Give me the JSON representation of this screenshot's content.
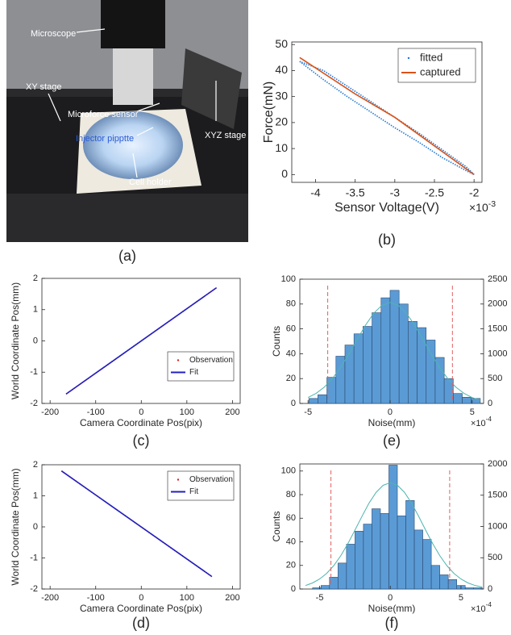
{
  "photo": {
    "labels": [
      "Microscope",
      "XY stage",
      "Microforce sensor",
      "Injector pipptte",
      "Cell holder",
      "XYZ stage"
    ],
    "caption": "(a)"
  },
  "chart_data": [
    {
      "type": "line",
      "caption": "(b)",
      "xlabel": "Sensor Voltage(V)",
      "ylabel": "Force(mN)",
      "x_exponent_base": "×10",
      "x_exponent_power": "-3",
      "xlim": [
        -4.3,
        -1.9
      ],
      "xticks": [
        -4,
        -3.5,
        -3,
        -2.5,
        -2
      ],
      "ylim": [
        -3,
        51
      ],
      "yticks": [
        0,
        10,
        20,
        30,
        40,
        50
      ],
      "legend": "upper right",
      "series": [
        {
          "name": "fitted",
          "color": "#1f77d4",
          "line_style": "dotted",
          "x": [
            -4.2,
            -3.9,
            -3.6,
            -3.3,
            -3.0,
            -2.7,
            -2.4,
            -2.1,
            -2.0,
            -2.1,
            -2.4,
            -2.7,
            -3.0,
            -3.3,
            -3.6,
            -3.9,
            -4.2
          ],
          "y": [
            43.5,
            36.5,
            30,
            24,
            18,
            12.5,
            6.5,
            1.5,
            0,
            3,
            9.5,
            16,
            22,
            28,
            34,
            40,
            43.5
          ]
        },
        {
          "name": "captured",
          "color": "#d95319",
          "line_style": "solid",
          "x": [
            -4.2,
            -3.5,
            -3.0,
            -2.5,
            -2.0
          ],
          "y": [
            45,
            31,
            22,
            11,
            0
          ]
        }
      ]
    },
    {
      "type": "line",
      "caption": "(c)",
      "xlabel": "Camera Coordinate Pos(pix)",
      "ylabel": "World Coordinate Pos(mm)",
      "xlim": [
        -218,
        217
      ],
      "xticks": [
        -200,
        -100,
        0,
        100,
        200
      ],
      "ylim": [
        -2,
        2
      ],
      "yticks": [
        -2,
        -1,
        0,
        1,
        2
      ],
      "legend": "center right",
      "series": [
        {
          "name": "Observation",
          "color": "#d62728",
          "line_style": "dotted",
          "x": [
            -165,
            165
          ],
          "y": [
            -1.7,
            1.7
          ]
        },
        {
          "name": "Fit",
          "color": "#2020c0",
          "line_style": "solid",
          "x": [
            -165,
            165
          ],
          "y": [
            -1.7,
            1.7
          ]
        }
      ]
    },
    {
      "type": "line",
      "caption": "(d)",
      "xlabel": "Camera Coordinate Pos(pix)",
      "ylabel": "World Coordinate Pos(mm)",
      "xlim": [
        -218,
        217
      ],
      "xticks": [
        -200,
        -100,
        0,
        100,
        200
      ],
      "ylim": [
        -2,
        2
      ],
      "yticks": [
        -2,
        -1,
        0,
        1,
        2
      ],
      "legend": "upper right",
      "series": [
        {
          "name": "Observation",
          "color": "#d62728",
          "line_style": "dotted",
          "x": [
            -175,
            155
          ],
          "y": [
            1.8,
            -1.6
          ]
        },
        {
          "name": "Fit",
          "color": "#2020c0",
          "line_style": "solid",
          "x": [
            -175,
            155
          ],
          "y": [
            1.8,
            -1.6
          ]
        }
      ]
    },
    {
      "type": "histogram",
      "caption": "(e)",
      "xlabel": "Noise(mm)",
      "ylabel": "Counts",
      "x_exponent_base": "×10",
      "x_exponent_power": "-4",
      "xlim": [
        -5.5,
        5.7
      ],
      "xticks": [
        -5,
        0,
        5
      ],
      "ylim": [
        0,
        100
      ],
      "yticks": [
        0,
        20,
        40,
        60,
        80,
        100
      ],
      "y2lim": [
        0,
        2500
      ],
      "y2ticks": [
        0,
        500,
        1000,
        1500,
        2000,
        2500
      ],
      "color": "#5b9bd5",
      "vlines": [
        -3.8,
        3.8
      ],
      "vline_color": "#e06060",
      "bins": [
        -4.95,
        -4.4,
        -3.85,
        -3.3,
        -2.75,
        -2.2,
        -1.65,
        -1.1,
        -0.55,
        0,
        0.55,
        1.1,
        1.65,
        2.2,
        2.75,
        3.3,
        3.85,
        4.4,
        4.95,
        5.5
      ],
      "counts": [
        4,
        7,
        21,
        38,
        47,
        56,
        62,
        73,
        85,
        91,
        80,
        66,
        61,
        51,
        37,
        20,
        8,
        5,
        4
      ],
      "series": [
        {
          "color": "#4cb5b0",
          "axis": "y2",
          "x": [
            -5,
            -4.5,
            -4,
            -3.5,
            -3,
            -2.5,
            -2,
            -1.5,
            -1,
            -0.5,
            0,
            0.5,
            1,
            1.5,
            2,
            2.5,
            3,
            3.5,
            4,
            4.5,
            5,
            5.5
          ],
          "values": [
            119,
            204,
            331,
            506,
            732,
            999,
            1290,
            1573,
            1813,
            1973,
            2030,
            1973,
            1813,
            1573,
            1290,
            999,
            732,
            506,
            331,
            204,
            119,
            66
          ]
        }
      ]
    },
    {
      "type": "histogram",
      "caption": "(f)",
      "xlabel": "Noise(mm)",
      "ylabel": "Counts",
      "x_exponent_base": "×10",
      "x_exponent_power": "-4",
      "xlim": [
        -6.4,
        6.6
      ],
      "xticks": [
        -5,
        0,
        5
      ],
      "ylim": [
        0,
        106
      ],
      "yticks": [
        0,
        20,
        40,
        60,
        80,
        100
      ],
      "y2lim": [
        0,
        2000
      ],
      "y2ticks": [
        0,
        500,
        1000,
        1500,
        2000
      ],
      "color": "#5b9bd5",
      "vlines": [
        -4.2,
        4.2
      ],
      "vline_color": "#e06060",
      "bins": [
        -5.5,
        -4.9,
        -4.3,
        -3.7,
        -3.1,
        -2.5,
        -1.9,
        -1.3,
        -0.7,
        -0.1,
        0.5,
        1.1,
        1.7,
        2.3,
        2.9,
        3.5,
        4.1,
        4.7,
        5.3,
        5.9,
        6.5
      ],
      "counts": [
        1,
        3,
        10,
        22,
        38,
        49,
        55,
        68,
        64,
        105,
        62,
        75,
        50,
        42,
        20,
        12,
        8,
        3,
        1,
        1
      ],
      "series": [
        {
          "color": "#4cb5b0",
          "axis": "y2",
          "x": [
            -6,
            -5.5,
            -5,
            -4.5,
            -4,
            -3.5,
            -3,
            -2.5,
            -2,
            -1.5,
            -1,
            -0.5,
            0,
            0.5,
            1,
            1.5,
            2,
            2.5,
            3,
            3.5,
            4,
            4.5,
            5,
            5.5,
            6,
            6.5
          ],
          "values": [
            56,
            97,
            160,
            250,
            374,
            534,
            726,
            942,
            1164,
            1375,
            1547,
            1660,
            1700,
            1660,
            1547,
            1375,
            1164,
            942,
            726,
            534,
            374,
            250,
            160,
            97,
            56,
            31
          ]
        }
      ]
    }
  ]
}
